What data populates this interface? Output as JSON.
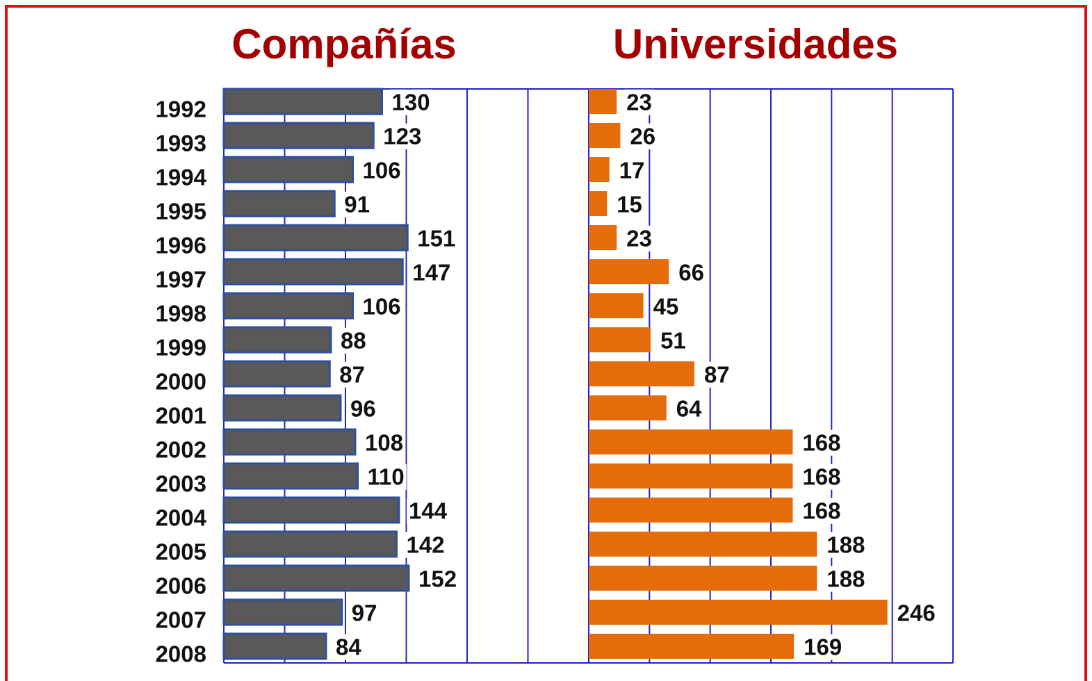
{
  "chart_data": [
    {
      "type": "bar",
      "orientation": "horizontal",
      "title": "Compañías",
      "categories": [
        "1992",
        "1993",
        "1994",
        "1995",
        "1996",
        "1997",
        "1998",
        "1999",
        "2000",
        "2001",
        "2002",
        "2003",
        "2004",
        "2005",
        "2006",
        "2007",
        "2008"
      ],
      "values": [
        130,
        123,
        106,
        91,
        151,
        147,
        106,
        88,
        87,
        96,
        108,
        110,
        144,
        142,
        152,
        97,
        84
      ],
      "color": "#595959",
      "edgecolor": "#2e4f9e",
      "xlim": [
        0,
        300
      ],
      "xticks": [
        0,
        50,
        100,
        150,
        200,
        250,
        300
      ],
      "grid": true
    },
    {
      "type": "bar",
      "orientation": "horizontal",
      "title": "Universidades",
      "values": [
        23,
        26,
        17,
        15,
        23,
        66,
        45,
        51,
        87,
        64,
        168,
        168,
        168,
        188,
        188,
        246,
        169
      ],
      "color": "#e46c0a",
      "xlim": [
        0,
        300
      ],
      "xticks": [
        0,
        50,
        100,
        150,
        200,
        250,
        300
      ],
      "grid": true
    }
  ]
}
